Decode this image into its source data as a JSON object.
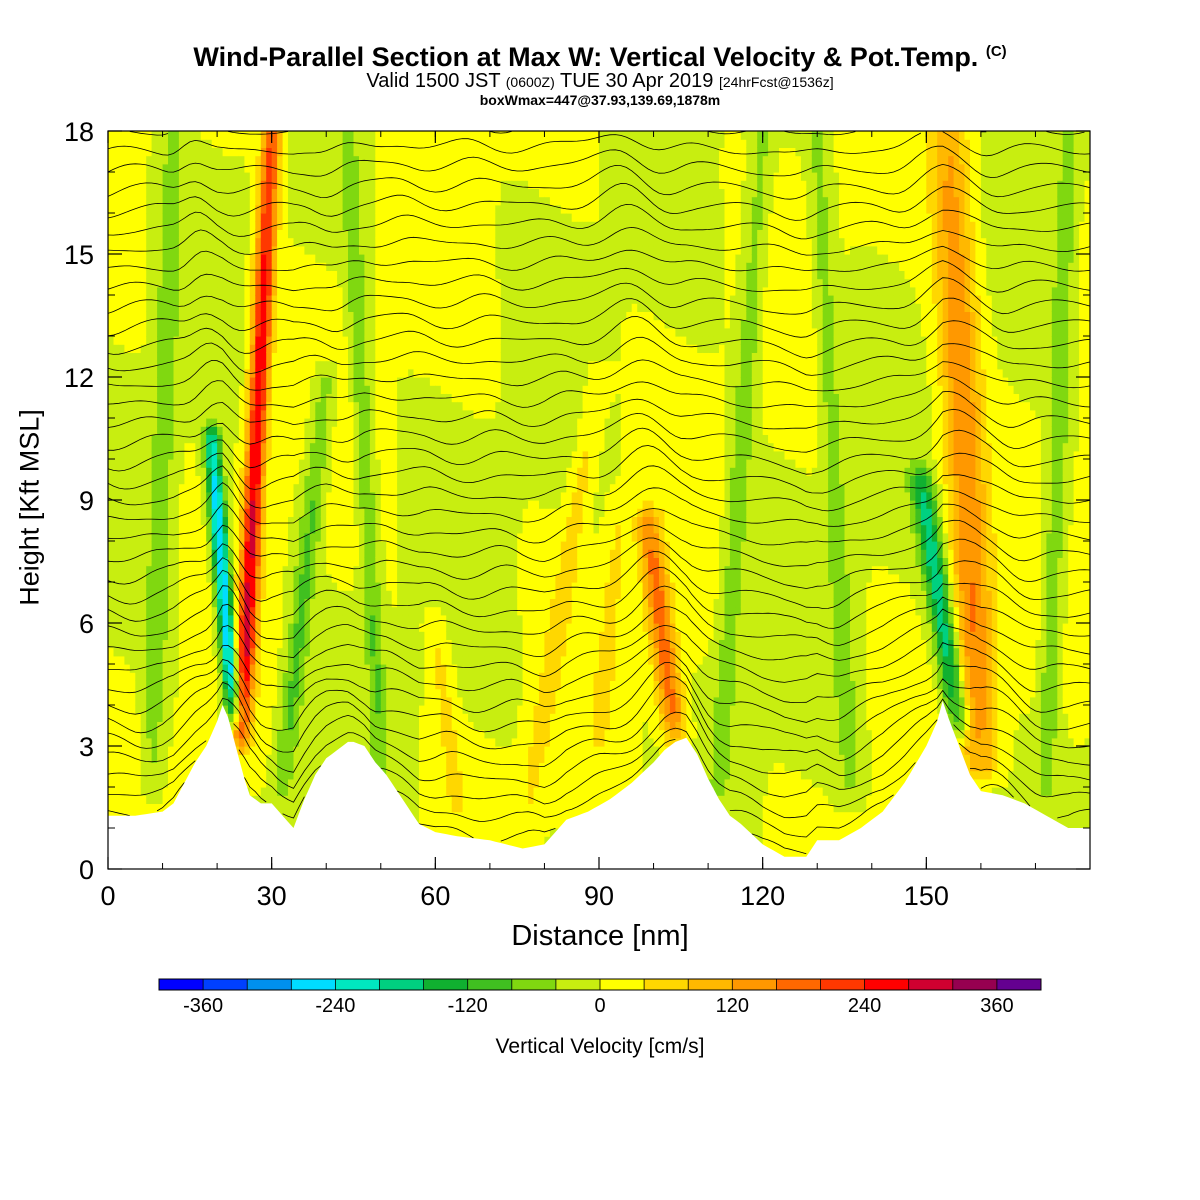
{
  "header": {
    "title": "Wind-Parallel Section at Max W: Vertical Velocity & Pot.Temp.",
    "title_mark": "(C)",
    "valid_a": "Valid 1500 JST",
    "valid_b": "(0600Z)",
    "valid_c": "TUE 30 Apr 2019",
    "valid_d": "[24hrFcst@1536z]",
    "box": "boxWmax=447@37.93,139.69,1878m"
  },
  "chart_data": {
    "type": "heatmap",
    "xlabel": "Distance [nm]",
    "ylabel": "Height [Kft MSL]",
    "xlim": [
      0,
      180
    ],
    "ylim": [
      0,
      18
    ],
    "xticks": [
      "0",
      "30",
      "60",
      "90",
      "120",
      "150"
    ],
    "yticks": [
      "0",
      "3",
      "6",
      "9",
      "12",
      "15",
      "18"
    ],
    "colorbar": {
      "label": "Vertical Velocity [cm/s]",
      "tick_labels": [
        "-360",
        "-240",
        "-120",
        "0",
        "120",
        "240",
        "360"
      ],
      "levels": [
        -400,
        -360,
        -320,
        -280,
        -240,
        -200,
        -160,
        -120,
        -80,
        -40,
        0,
        40,
        80,
        120,
        160,
        200,
        240,
        280,
        320,
        360,
        400
      ],
      "colors": [
        "#0000ff",
        "#0040ff",
        "#0090ee",
        "#00ddff",
        "#00e8c0",
        "#00d080",
        "#10b030",
        "#40c020",
        "#80d810",
        "#c8ee10",
        "#ffff00",
        "#ffd700",
        "#ffb800",
        "#ff9800",
        "#ff6800",
        "#ff3800",
        "#ff0000",
        "#d00030",
        "#960050",
        "#640090"
      ]
    },
    "terrain_kft": [
      [
        0,
        1.3
      ],
      [
        5,
        1.3
      ],
      [
        10,
        1.4
      ],
      [
        12,
        1.6
      ],
      [
        14,
        2.1
      ],
      [
        16,
        2.6
      ],
      [
        18,
        3.0
      ],
      [
        20,
        3.6
      ],
      [
        21,
        4.0
      ],
      [
        22,
        3.7
      ],
      [
        23,
        3.2
      ],
      [
        24,
        2.7
      ],
      [
        25,
        2.2
      ],
      [
        26,
        1.8
      ],
      [
        28,
        1.6
      ],
      [
        30,
        1.6
      ],
      [
        32,
        1.3
      ],
      [
        34,
        1.0
      ],
      [
        36,
        1.7
      ],
      [
        38,
        2.3
      ],
      [
        40,
        2.7
      ],
      [
        42,
        2.9
      ],
      [
        44,
        3.1
      ],
      [
        45,
        3.1
      ],
      [
        47,
        3.0
      ],
      [
        49,
        2.6
      ],
      [
        51,
        2.3
      ],
      [
        53,
        1.9
      ],
      [
        55,
        1.5
      ],
      [
        57,
        1.1
      ],
      [
        60,
        0.9
      ],
      [
        64,
        0.8
      ],
      [
        70,
        0.7
      ],
      [
        76,
        0.5
      ],
      [
        80,
        0.6
      ],
      [
        84,
        1.2
      ],
      [
        88,
        1.4
      ],
      [
        92,
        1.7
      ],
      [
        96,
        2.1
      ],
      [
        100,
        2.6
      ],
      [
        102,
        2.9
      ],
      [
        104,
        3.1
      ],
      [
        106,
        3.2
      ],
      [
        108,
        2.8
      ],
      [
        110,
        2.2
      ],
      [
        112,
        1.7
      ],
      [
        114,
        1.3
      ],
      [
        116,
        1.1
      ],
      [
        120,
        0.6
      ],
      [
        124,
        0.3
      ],
      [
        128,
        0.3
      ],
      [
        130,
        0.7
      ],
      [
        134,
        0.7
      ],
      [
        138,
        1.0
      ],
      [
        142,
        1.4
      ],
      [
        146,
        2.1
      ],
      [
        150,
        3.0
      ],
      [
        152,
        3.6
      ],
      [
        153,
        4.1
      ],
      [
        154,
        3.7
      ],
      [
        156,
        3.0
      ],
      [
        158,
        2.3
      ],
      [
        160,
        1.9
      ],
      [
        164,
        1.8
      ],
      [
        168,
        1.6
      ],
      [
        172,
        1.3
      ],
      [
        176,
        1.0
      ],
      [
        180,
        1.0
      ]
    ],
    "features": [
      {
        "name": "plume-A",
        "x_base": 24.5,
        "x_top": 30,
        "z_base": 3.2,
        "z_top": 18,
        "width": 1.8,
        "w": 280
      },
      {
        "name": "plume-A-down",
        "x_base": 23,
        "x_top": 19,
        "z_base": 3.8,
        "z_top": 10.5,
        "width": 1.5,
        "w": -290
      },
      {
        "name": "plume-B",
        "x_base": 104,
        "x_top": 99,
        "z_base": 3.2,
        "z_top": 8.5,
        "width": 2.4,
        "w": 180
      },
      {
        "name": "plume-C",
        "x_base": 160,
        "x_top": 154,
        "z_base": 2.5,
        "z_top": 18,
        "width": 3.6,
        "w": 160
      },
      {
        "name": "plume-C-down",
        "x_base": 156,
        "x_top": 149,
        "z_base": 3.5,
        "z_top": 9.5,
        "width": 2.2,
        "w": -190
      },
      {
        "name": "mod-1",
        "x_base": 77,
        "x_top": 90,
        "z_base": 1.5,
        "z_top": 12,
        "width": 2.0,
        "w": 60
      },
      {
        "name": "mod-2",
        "x_base": 64,
        "x_top": 60,
        "z_base": 1.5,
        "z_top": 6,
        "width": 1.8,
        "w": 55
      },
      {
        "name": "mod-3",
        "x_base": 90,
        "x_top": 94,
        "z_base": 3,
        "z_top": 9,
        "width": 2.0,
        "w": 50
      },
      {
        "name": "mod-4",
        "x_base": 32,
        "x_top": 40,
        "z_base": 2,
        "z_top": 12,
        "width": 2.0,
        "w": -90
      },
      {
        "name": "mod-5",
        "x_base": 50,
        "x_top": 44,
        "z_base": 2.5,
        "z_top": 18,
        "width": 1.6,
        "w": -80
      },
      {
        "name": "mod-6",
        "x_base": 112,
        "x_top": 120,
        "z_base": 2,
        "z_top": 18,
        "width": 2.0,
        "w": -70
      },
      {
        "name": "mod-7",
        "x_base": 136,
        "x_top": 130,
        "z_base": 2,
        "z_top": 18,
        "width": 1.8,
        "w": -65
      },
      {
        "name": "mod-8",
        "x_base": 8,
        "x_top": 12,
        "z_base": 2,
        "z_top": 18,
        "width": 2.0,
        "w": -70
      },
      {
        "name": "mod-9",
        "x_base": 172,
        "x_top": 176,
        "z_base": 2,
        "z_top": 18,
        "width": 1.8,
        "w": -75
      }
    ]
  }
}
